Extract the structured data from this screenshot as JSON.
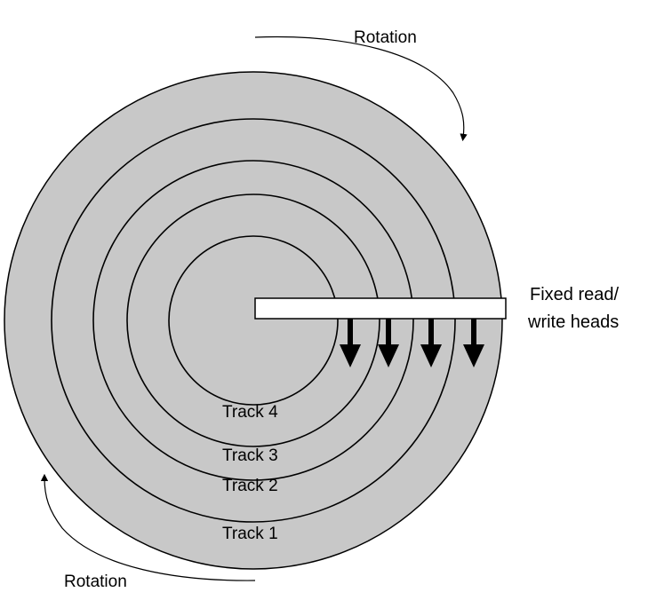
{
  "diagram": {
    "rotation_top_label": "Rotation",
    "rotation_bottom_label": "Rotation",
    "head_label_line1": "Fixed read/",
    "head_label_line2": "write heads",
    "tracks": [
      {
        "label": "Track 4"
      },
      {
        "label": "Track 3"
      },
      {
        "label": "Track 2"
      },
      {
        "label": "Track 1"
      }
    ],
    "colors": {
      "disk_fill": "#c8c8c8",
      "line": "#000000",
      "arm_fill": "#ffffff"
    },
    "icons": {
      "head_arrow": "down-arrow-icon",
      "rotation_arrow": "curved-arrow-icon"
    }
  }
}
